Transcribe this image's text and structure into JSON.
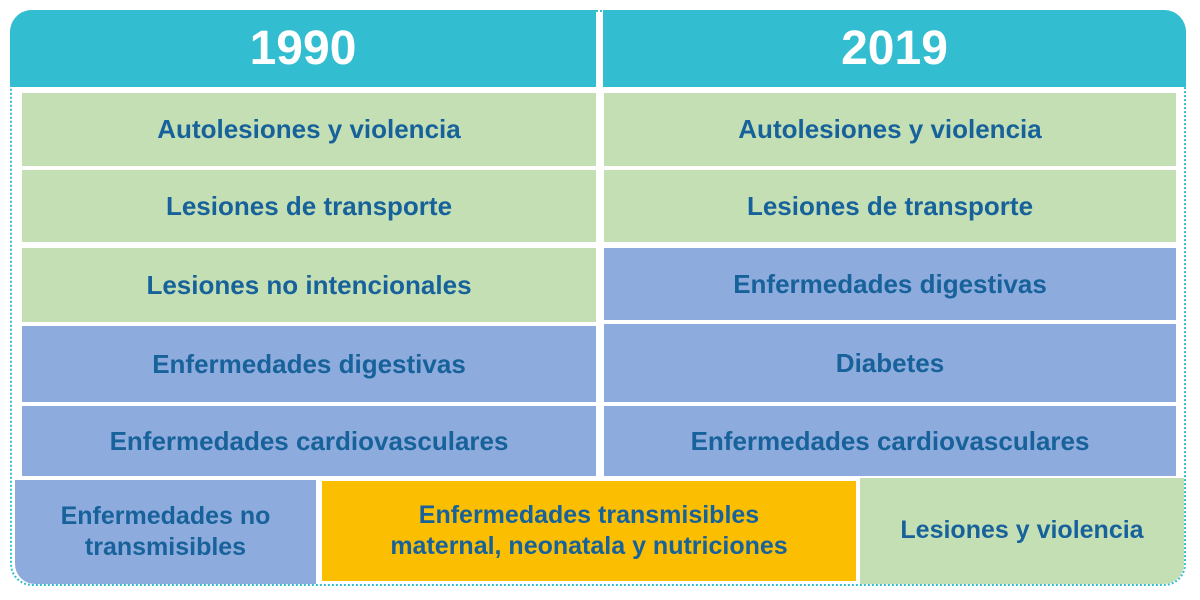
{
  "headers": {
    "left": "1990",
    "right": "2019"
  },
  "rows_1990": [
    "Autolesiones y violencia",
    "Lesiones de transporte",
    "Lesiones no intencionales",
    "Enfermedades digestivas",
    "Enfermedades cardiovasculares"
  ],
  "rows_2019": [
    "Autolesiones y violencia",
    "Lesiones de transporte",
    "Enfermedades digestivas",
    "Diabetes",
    "Enfermedades cardiovasculares"
  ],
  "legend": {
    "ncd_line1": "Enfermedades no",
    "ncd_line2": "transmisibles",
    "communicable_line1": "Enfermedades transmisibles",
    "communicable_line2": "maternal, neonatala y nutriciones",
    "injuries": "Lesiones y violencia"
  },
  "colors": {
    "header": "#32bdd0",
    "injuries_green": "#c5dfb5",
    "ncd_blue": "#8eabdd",
    "communicable_yellow": "#fbbe00",
    "text_blue": "#17629a"
  }
}
